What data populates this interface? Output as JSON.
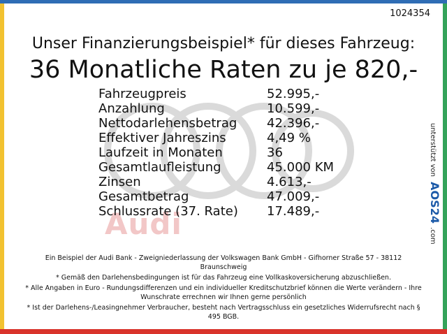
{
  "ad_id": "1024354",
  "headline": "Unser Finanzierungsbeispiel* für dieses Fahrzeug:",
  "rate_text": "36 Monatliche Raten zu je 820,-",
  "brand_watermark": "Audi",
  "details": [
    {
      "label": "Fahrzeugpreis",
      "value": "52.995,-"
    },
    {
      "label": "Anzahlung",
      "value": "10.599,-"
    },
    {
      "label": "Nettodarlehensbetrag",
      "value": "42.396,-"
    },
    {
      "label": "Effektiver Jahreszins",
      "value": "4,49 %"
    },
    {
      "label": "Laufzeit in Monaten",
      "value": "36"
    },
    {
      "label": "Gesamtlaufleistung",
      "value": "45.000 KM"
    },
    {
      "label": "Zinsen",
      "value": "4.613,-"
    },
    {
      "label": "Gesamtbetrag",
      "value": "47.009,-"
    },
    {
      "label": "Schlussrate (37. Rate)",
      "value": "17.489,-"
    }
  ],
  "sponsor": {
    "prefix": "unterstützt von",
    "brand": "AOS24",
    "suffix": ".com"
  },
  "footer": [
    "Ein Beispiel der Audi Bank - Zweigniederlassung der Volkswagen Bank GmbH - Gifhorner Straße 57 - 38112 Braunschweig",
    "* Gemäß den Darlehensbedingungen ist für das Fahrzeug eine Vollkaskoversicherung abzuschließen.",
    "* Alle Angaben in Euro - Rundungsdifferenzen und ein individueller Kreditschutzbrief können die Werte verändern - Ihre Wunschrate errechnen wir Ihnen gerne persönlich",
    "* Ist der Darlehens-/Leasingnehmer Verbraucher, besteht nach Vertragsschluss ein gesetzliches Widerrufsrecht nach § 495 BGB."
  ],
  "colors": {
    "top": "#2f6db5",
    "left": "#f2c230",
    "right": "#34a35a",
    "bottom": "#d9332b",
    "rings": "#d9d9d9"
  }
}
